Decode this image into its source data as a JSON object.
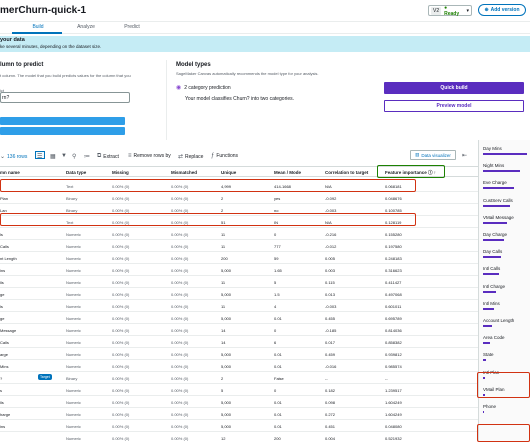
{
  "header": {
    "app_title": "merChurn-quick-1",
    "version_id": "V2",
    "status": "Ready",
    "add_version_label": "Add version"
  },
  "tabs": [
    "Select",
    "Build",
    "Analyze",
    "Predict"
  ],
  "banner": {
    "title": "your data",
    "subtitle": "ke several minutes, depending on the dataset size."
  },
  "target": {
    "title": "lumn to predict",
    "description": "t column. The model that you build predicts values for the column that you",
    "input_label": "ict",
    "input_value": "rn?"
  },
  "model_type": {
    "title": "Model types",
    "description": "SageMaker Canvas automatically recommends the model type for your analysis.",
    "prediction_label": "2 category prediction",
    "prediction_desc": "Your model classifies Churn? into two categories."
  },
  "actions": {
    "quick_build": "Quick build",
    "preview_model": "Preview model"
  },
  "toolbar": {
    "column_count": "136 rows",
    "extract": "Extract",
    "remove_rows": "Remove rows by",
    "replace": "Replace",
    "functions": "Functions",
    "data_viz": "Data visualizer"
  },
  "table": {
    "headers": [
      "mn name",
      "Data type",
      "Missing",
      "Mismatched",
      "Unique",
      "Mean / Mode",
      "Correlation to target",
      "Feature importance"
    ],
    "rows": [
      {
        "name": "",
        "type": "Text",
        "missing": "0.00% (0)",
        "mismatched": "0.00% (0)",
        "unique": "4,999",
        "mean": "414-1668",
        "corr": "N/A",
        "imp": "0.068181"
      },
      {
        "name": "Plan",
        "type": "Binary",
        "missing": "0.00% (0)",
        "mismatched": "0.00% (0)",
        "unique": "2",
        "mean": "yes",
        "corr": "-0.092",
        "imp": "0.048676"
      },
      {
        "name": "Lan",
        "type": "Binary",
        "missing": "0.00% (0)",
        "mismatched": "0.00% (0)",
        "unique": "2",
        "mean": "no",
        "corr": "-0.003",
        "imp": "0.100785"
      },
      {
        "name": "",
        "type": "Text",
        "missing": "0.00% (0)",
        "mismatched": "0.00% (0)",
        "unique": "51",
        "mean": "IN",
        "corr": "N/A",
        "imp": "0.128119"
      },
      {
        "name": "ls",
        "type": "Numeric",
        "missing": "0.00% (0)",
        "mismatched": "0.00% (0)",
        "unique": "11",
        "mean": "0",
        "corr": "-0.216",
        "imp": "0.155280"
      },
      {
        "name": "Calls",
        "type": "Numeric",
        "missing": "0.00% (0)",
        "mismatched": "0.00% (0)",
        "unique": "11",
        "mean": "777",
        "corr": "-0.012",
        "imp": "0.197580"
      },
      {
        "name": "nt Length",
        "type": "Numeric",
        "missing": "0.00% (0)",
        "mismatched": "0.00% (0)",
        "unique": "200",
        "mean": "59",
        "corr": "0.005",
        "imp": "0.248183"
      },
      {
        "name": "ins",
        "type": "Numeric",
        "missing": "0.00% (0)",
        "mismatched": "0.00% (0)",
        "unique": "5,000",
        "mean": "1.65",
        "corr": "0.003",
        "imp": "0.316623"
      },
      {
        "name": "lls",
        "type": "Numeric",
        "missing": "0.00% (0)",
        "mismatched": "0.00% (0)",
        "unique": "11",
        "mean": "5",
        "corr": "0.115",
        "imp": "0.411427"
      },
      {
        "name": "ge",
        "type": "Numeric",
        "missing": "0.00% (0)",
        "mismatched": "0.00% (0)",
        "unique": "5,000",
        "mean": "1.5",
        "corr": "0.013",
        "imp": "0.497068"
      },
      {
        "name": "ls",
        "type": "Numeric",
        "missing": "0.00% (0)",
        "mismatched": "0.00% (0)",
        "unique": "11",
        "mean": "4",
        "corr": "-0.003",
        "imp": "0.601011"
      },
      {
        "name": "ge",
        "type": "Numeric",
        "missing": "0.00% (0)",
        "mismatched": "0.00% (0)",
        "unique": "5,000",
        "mean": "0.01",
        "corr": "0.455",
        "imp": "0.695789"
      },
      {
        "name": "Message",
        "type": "Numeric",
        "missing": "0.00% (0)",
        "mismatched": "0.00% (0)",
        "unique": "14",
        "mean": "0",
        "corr": "-0.185",
        "imp": "0.814036"
      },
      {
        "name": "Calls",
        "type": "Numeric",
        "missing": "0.00% (0)",
        "mismatched": "0.00% (0)",
        "unique": "14",
        "mean": "6",
        "corr": "0.017",
        "imp": "0.858382"
      },
      {
        "name": "arge",
        "type": "Numeric",
        "missing": "0.00% (0)",
        "mismatched": "0.00% (0)",
        "unique": "5,000",
        "mean": "0.01",
        "corr": "0.459",
        "imp": "0.939812"
      },
      {
        "name": "Mins",
        "type": "Numeric",
        "missing": "0.00% (0)",
        "mismatched": "0.00% (0)",
        "unique": "5,000",
        "mean": "0.01",
        "corr": "-0.016",
        "imp": "0.985574"
      },
      {
        "name": "?",
        "type": "Binary",
        "missing": "0.00% (0)",
        "mismatched": "0.00% (0)",
        "unique": "2",
        "mean": "False",
        "corr": "--",
        "imp": "--",
        "target": true
      },
      {
        "name": "s",
        "type": "Numeric",
        "missing": "0.00% (0)",
        "mismatched": "0.00% (0)",
        "unique": "5",
        "mean": "0",
        "corr": "0.182",
        "imp": "1.239517"
      },
      {
        "name": "lls",
        "type": "Numeric",
        "missing": "0.00% (0)",
        "mismatched": "0.00% (0)",
        "unique": "5,000",
        "mean": "0.01",
        "corr": "0.098",
        "imp": "1.604249"
      },
      {
        "name": "harge",
        "type": "Numeric",
        "missing": "0.00% (0)",
        "mismatched": "0.00% (0)",
        "unique": "5,000",
        "mean": "0.01",
        "corr": "0.272",
        "imp": "1.604249"
      },
      {
        "name": "ins",
        "type": "Numeric",
        "missing": "0.00% (0)",
        "mismatched": "0.00% (0)",
        "unique": "5,000",
        "mean": "0.01",
        "corr": "0.451",
        "imp": "0.048080"
      },
      {
        "name": "",
        "type": "Numeric",
        "missing": "0.00% (0)",
        "mismatched": "0.00% (0)",
        "unique": "12",
        "mean": "200",
        "corr": "0.004",
        "imp": "0.521932"
      }
    ],
    "target_badge": "Target"
  },
  "right_panel": {
    "items": [
      "Day Mins",
      "Night Mins",
      "Eve Charge",
      "CustServ Calls",
      "VMail Message",
      "Day Charge",
      "Day Calls",
      "Intl Calls",
      "Intl Charge",
      "Intl Mins",
      "Account Length",
      "Area Code",
      "State",
      "Intl Plan",
      "VMail Plan",
      "Phone"
    ],
    "importance": [
      1.0,
      0.85,
      0.7,
      0.62,
      0.55,
      0.48,
      0.42,
      0.36,
      0.3,
      0.26,
      0.21,
      0.16,
      0.06,
      0.05,
      0.04,
      0.03
    ]
  },
  "colors": {
    "accent": "#0073bb",
    "primary": "#5a2dbf",
    "highlight": "#d13212",
    "highlight_green": "#1d8102"
  }
}
